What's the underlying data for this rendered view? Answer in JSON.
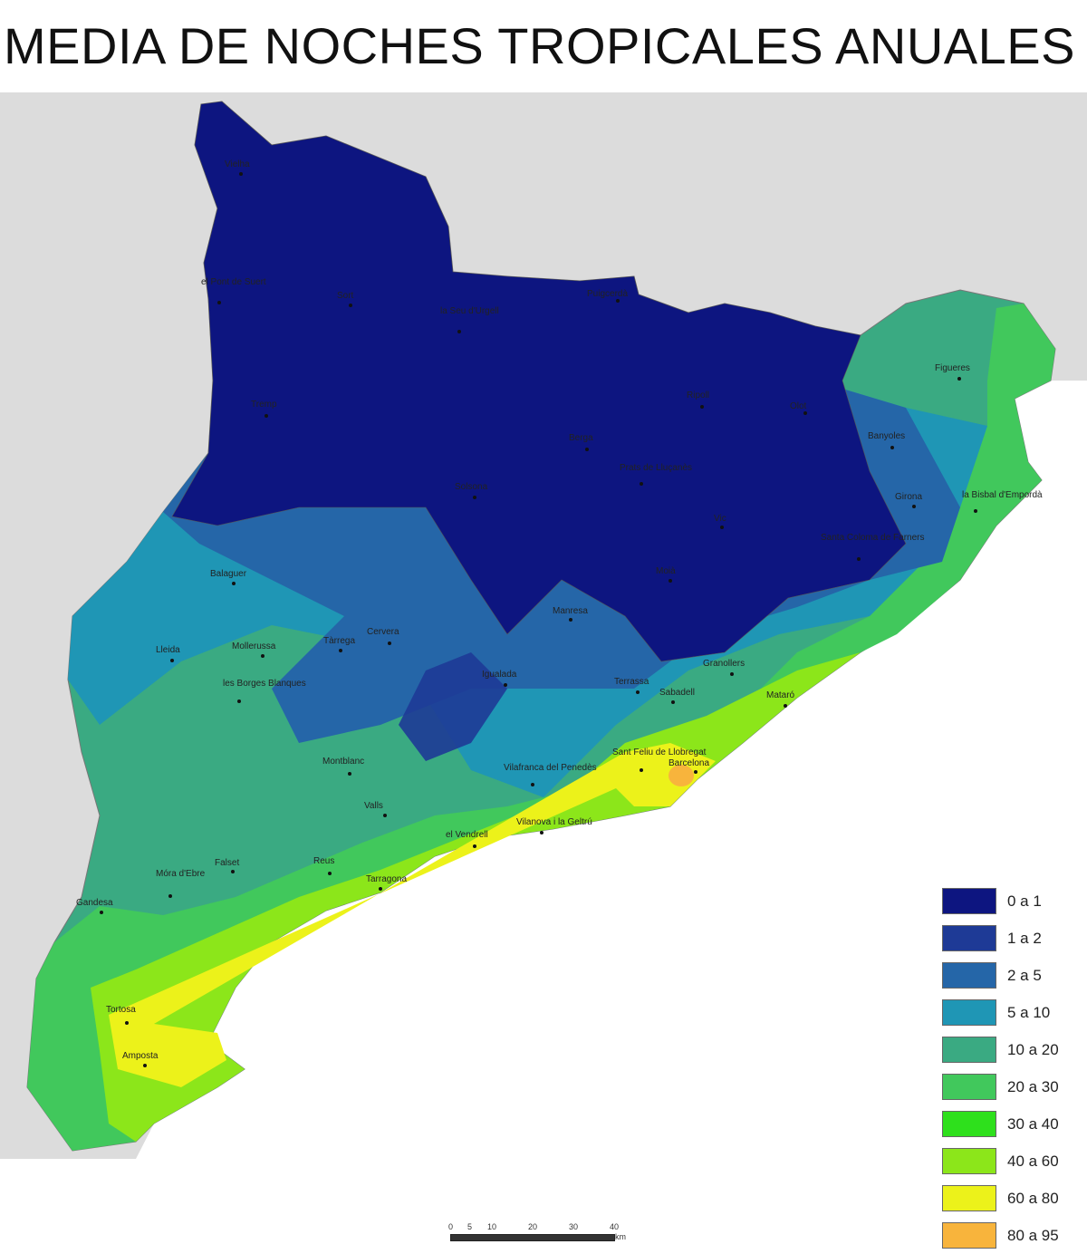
{
  "title": "MEDIA DE NOCHES TROPICALES ANUALES",
  "legend": [
    {
      "label": "0 a 1",
      "color": "#0d1580"
    },
    {
      "label": "1 a 2",
      "color": "#1e3a96"
    },
    {
      "label": "2 a 5",
      "color": "#2566a8"
    },
    {
      "label": "5 a 10",
      "color": "#1f96b5"
    },
    {
      "label": "10 a 20",
      "color": "#3aaa82"
    },
    {
      "label": "20 a 30",
      "color": "#41c85c"
    },
    {
      "label": "30 a 40",
      "color": "#2ee01c"
    },
    {
      "label": "40 a 60",
      "color": "#8ce61a"
    },
    {
      "label": "60 a 80",
      "color": "#ecf21a"
    },
    {
      "label": "80 a 95",
      "color": "#f8b43c"
    }
  ],
  "scale_bar": {
    "ticks": [
      "0",
      "5",
      "10",
      "20",
      "30",
      "40"
    ],
    "unit": "km"
  },
  "towns": [
    "Vielha",
    "el Pont de Suert",
    "Sort",
    "la Seu d'Urgell",
    "Puigcerdà",
    "Tremp",
    "Berga",
    "Ripoll",
    "Olot",
    "Figueres",
    "Banyoles",
    "Girona",
    "la Bisbal d'Empordà",
    "Solsona",
    "Prats de Lluçanès",
    "Vic",
    "Santa Coloma de Farners",
    "Moià",
    "Balaguer",
    "Manresa",
    "Cervera",
    "Tàrrega",
    "Mollerussa",
    "Lleida",
    "les Borges Blanques",
    "Igualada",
    "Granollers",
    "Terrassa",
    "Sabadell",
    "Mataró",
    "Sant Feliu de Llobregat",
    "Barcelona",
    "Montblanc",
    "Vilafranca del Penedès",
    "Valls",
    "el Vendrell",
    "Vilanova i la Geltrú",
    "Falset",
    "Reus",
    "Tarragona",
    "Móra d'Ebre",
    "Gandesa",
    "Tortosa",
    "Amposta"
  ]
}
